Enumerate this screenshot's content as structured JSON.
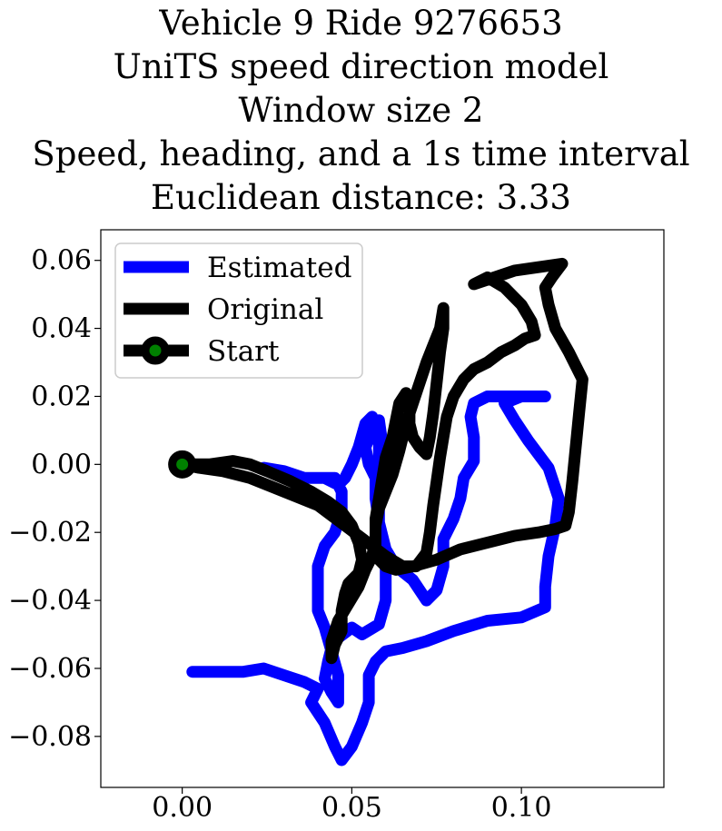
{
  "chart_data": {
    "type": "line",
    "title_lines": [
      "Vehicle 9 Ride 9276653",
      "UniTS speed direction model",
      "Window size 2",
      "Speed, heading, and a 1s time interval",
      "Euclidean distance: 3.33"
    ],
    "xlabel": "",
    "ylabel": "",
    "xlim": [
      -0.024,
      0.142
    ],
    "ylim": [
      -0.095,
      0.069
    ],
    "xticks": [
      0.0,
      0.05,
      0.1
    ],
    "xtick_labels": [
      "0.00",
      "0.05",
      "0.10"
    ],
    "yticks": [
      0.06,
      0.04,
      0.02,
      0.0,
      -0.02,
      -0.04,
      -0.06,
      -0.08
    ],
    "ytick_labels": [
      "0.06",
      "0.04",
      "0.02",
      "0.00",
      "−0.02",
      "−0.04",
      "−0.06",
      "−0.08"
    ],
    "grid": false,
    "legend_position": "top-left",
    "series": [
      {
        "name": "Estimated",
        "color": "#0000ff",
        "points": [
          [
            0.003,
            -0.061
          ],
          [
            0.01,
            -0.061
          ],
          [
            0.018,
            -0.061
          ],
          [
            0.024,
            -0.06
          ],
          [
            0.03,
            -0.062
          ],
          [
            0.036,
            -0.064
          ],
          [
            0.04,
            -0.066
          ],
          [
            0.038,
            -0.07
          ],
          [
            0.042,
            -0.076
          ],
          [
            0.045,
            -0.083
          ],
          [
            0.047,
            -0.087
          ],
          [
            0.05,
            -0.083
          ],
          [
            0.053,
            -0.076
          ],
          [
            0.055,
            -0.07
          ],
          [
            0.055,
            -0.062
          ],
          [
            0.057,
            -0.058
          ],
          [
            0.06,
            -0.055
          ],
          [
            0.065,
            -0.054
          ],
          [
            0.072,
            -0.052
          ],
          [
            0.08,
            -0.049
          ],
          [
            0.09,
            -0.046
          ],
          [
            0.1,
            -0.045
          ],
          [
            0.107,
            -0.042
          ],
          [
            0.107,
            -0.036
          ],
          [
            0.108,
            -0.027
          ],
          [
            0.11,
            -0.018
          ],
          [
            0.111,
            -0.01
          ],
          [
            0.108,
            -0.001
          ],
          [
            0.102,
            0.007
          ],
          [
            0.098,
            0.013
          ],
          [
            0.095,
            0.018
          ],
          [
            0.1,
            0.02
          ],
          [
            0.107,
            0.02
          ],
          [
            0.098,
            0.02
          ],
          [
            0.09,
            0.02
          ],
          [
            0.086,
            0.018
          ],
          [
            0.085,
            0.014
          ],
          [
            0.086,
            0.008
          ],
          [
            0.086,
            0.001
          ],
          [
            0.083,
            -0.004
          ],
          [
            0.082,
            -0.01
          ],
          [
            0.08,
            -0.016
          ],
          [
            0.077,
            -0.022
          ],
          [
            0.077,
            -0.03
          ],
          [
            0.075,
            -0.037
          ],
          [
            0.072,
            -0.04
          ],
          [
            0.068,
            -0.034
          ],
          [
            0.063,
            -0.03
          ],
          [
            0.06,
            -0.025
          ],
          [
            0.058,
            -0.017
          ],
          [
            0.057,
            -0.01
          ],
          [
            0.057,
            -0.004
          ],
          [
            0.055,
            0.0
          ],
          [
            0.054,
            0.005
          ],
          [
            0.056,
            0.01
          ],
          [
            0.058,
            0.013
          ],
          [
            0.059,
            0.006
          ],
          [
            0.06,
            0.0
          ],
          [
            0.058,
            -0.008
          ],
          [
            0.058,
            -0.02
          ],
          [
            0.06,
            -0.03
          ],
          [
            0.06,
            -0.04
          ],
          [
            0.058,
            -0.047
          ],
          [
            0.053,
            -0.05
          ],
          [
            0.05,
            -0.048
          ],
          [
            0.046,
            -0.051
          ],
          [
            0.044,
            -0.054
          ],
          [
            0.043,
            -0.058
          ],
          [
            0.042,
            -0.063
          ],
          [
            0.044,
            -0.067
          ],
          [
            0.046,
            -0.07
          ],
          [
            0.046,
            -0.062
          ],
          [
            0.044,
            -0.055
          ],
          [
            0.042,
            -0.048
          ],
          [
            0.04,
            -0.043
          ],
          [
            0.04,
            -0.036
          ],
          [
            0.04,
            -0.03
          ],
          [
            0.042,
            -0.024
          ],
          [
            0.045,
            -0.02
          ],
          [
            0.047,
            -0.014
          ],
          [
            0.047,
            -0.008
          ],
          [
            0.045,
            -0.004
          ],
          [
            0.042,
            -0.004
          ],
          [
            0.038,
            -0.004
          ],
          [
            0.033,
            -0.004
          ],
          [
            0.028,
            -0.002
          ],
          [
            0.024,
            -0.001
          ],
          [
            0.03,
            -0.002
          ],
          [
            0.036,
            -0.004
          ],
          [
            0.042,
            -0.004
          ],
          [
            0.046,
            -0.006
          ],
          [
            0.048,
            -0.004
          ],
          [
            0.05,
            0.0
          ],
          [
            0.052,
            0.005
          ],
          [
            0.054,
            0.012
          ],
          [
            0.056,
            0.014
          ],
          [
            0.058,
            0.006
          ],
          [
            0.058,
            -0.002
          ],
          [
            0.057,
            -0.008
          ]
        ]
      },
      {
        "name": "Original",
        "color": "#000000",
        "points": [
          [
            0.0,
            0.0
          ],
          [
            0.008,
            0.0
          ],
          [
            0.015,
            0.001
          ],
          [
            0.02,
            0.0
          ],
          [
            0.025,
            -0.002
          ],
          [
            0.032,
            -0.005
          ],
          [
            0.038,
            -0.008
          ],
          [
            0.043,
            -0.011
          ],
          [
            0.047,
            -0.014
          ],
          [
            0.05,
            -0.018
          ],
          [
            0.052,
            -0.023
          ],
          [
            0.053,
            -0.028
          ],
          [
            0.052,
            -0.032
          ],
          [
            0.049,
            -0.035
          ],
          [
            0.048,
            -0.038
          ],
          [
            0.047,
            -0.043
          ],
          [
            0.047,
            -0.049
          ],
          [
            0.045,
            -0.053
          ],
          [
            0.044,
            -0.057
          ],
          [
            0.044,
            -0.052
          ],
          [
            0.046,
            -0.046
          ],
          [
            0.049,
            -0.041
          ],
          [
            0.052,
            -0.036
          ],
          [
            0.054,
            -0.031
          ],
          [
            0.056,
            -0.027
          ],
          [
            0.057,
            -0.022
          ],
          [
            0.057,
            -0.016
          ],
          [
            0.058,
            -0.01
          ],
          [
            0.059,
            -0.004
          ],
          [
            0.06,
            0.002
          ],
          [
            0.062,
            0.008
          ],
          [
            0.063,
            0.013
          ],
          [
            0.064,
            0.018
          ],
          [
            0.066,
            0.021
          ],
          [
            0.067,
            0.018
          ],
          [
            0.067,
            0.012
          ],
          [
            0.068,
            0.008
          ],
          [
            0.07,
            0.005
          ],
          [
            0.072,
            0.003
          ],
          [
            0.073,
            0.008
          ],
          [
            0.074,
            0.015
          ],
          [
            0.075,
            0.024
          ],
          [
            0.076,
            0.033
          ],
          [
            0.077,
            0.04
          ],
          [
            0.077,
            0.046
          ],
          [
            0.076,
            0.04
          ],
          [
            0.074,
            0.035
          ],
          [
            0.072,
            0.03
          ],
          [
            0.07,
            0.024
          ],
          [
            0.068,
            0.018
          ],
          [
            0.066,
            0.012
          ],
          [
            0.064,
            0.004
          ],
          [
            0.062,
            -0.003
          ],
          [
            0.06,
            -0.008
          ],
          [
            0.058,
            -0.013
          ],
          [
            0.057,
            -0.018
          ],
          [
            0.057,
            -0.024
          ],
          [
            0.058,
            -0.028
          ],
          [
            0.06,
            -0.03
          ],
          [
            0.063,
            -0.031
          ],
          [
            0.068,
            -0.03
          ],
          [
            0.075,
            -0.028
          ],
          [
            0.082,
            -0.025
          ],
          [
            0.09,
            -0.023
          ],
          [
            0.098,
            -0.021
          ],
          [
            0.105,
            -0.02
          ],
          [
            0.11,
            -0.019
          ],
          [
            0.113,
            -0.018
          ],
          [
            0.114,
            -0.014
          ],
          [
            0.115,
            -0.005
          ],
          [
            0.116,
            0.005
          ],
          [
            0.117,
            0.015
          ],
          [
            0.118,
            0.025
          ],
          [
            0.114,
            0.033
          ],
          [
            0.11,
            0.04
          ],
          [
            0.108,
            0.047
          ],
          [
            0.107,
            0.052
          ],
          [
            0.109,
            0.055
          ],
          [
            0.112,
            0.059
          ],
          [
            0.105,
            0.058
          ],
          [
            0.098,
            0.057
          ],
          [
            0.092,
            0.055
          ],
          [
            0.086,
            0.053
          ],
          [
            0.09,
            0.055
          ],
          [
            0.095,
            0.052
          ],
          [
            0.1,
            0.047
          ],
          [
            0.103,
            0.042
          ],
          [
            0.104,
            0.038
          ],
          [
            0.101,
            0.037
          ],
          [
            0.098,
            0.035
          ],
          [
            0.094,
            0.033
          ],
          [
            0.09,
            0.03
          ],
          [
            0.086,
            0.028
          ],
          [
            0.083,
            0.025
          ],
          [
            0.08,
            0.02
          ],
          [
            0.078,
            0.014
          ],
          [
            0.077,
            0.008
          ],
          [
            0.076,
            0.002
          ],
          [
            0.075,
            -0.005
          ],
          [
            0.074,
            -0.012
          ],
          [
            0.073,
            -0.02
          ],
          [
            0.072,
            -0.026
          ],
          [
            0.069,
            -0.03
          ],
          [
            0.065,
            -0.03
          ],
          [
            0.06,
            -0.027
          ],
          [
            0.056,
            -0.024
          ],
          [
            0.052,
            -0.021
          ],
          [
            0.048,
            -0.018
          ],
          [
            0.044,
            -0.015
          ],
          [
            0.04,
            -0.012
          ],
          [
            0.035,
            -0.01
          ],
          [
            0.03,
            -0.008
          ],
          [
            0.025,
            -0.006
          ],
          [
            0.02,
            -0.004
          ],
          [
            0.012,
            -0.002
          ],
          [
            0.005,
            -0.001
          ],
          [
            0.0,
            0.0
          ]
        ]
      },
      {
        "name": "Start",
        "marker_fill": "#008000",
        "marker_edge": "#000000",
        "points": [
          [
            0.0,
            0.0
          ]
        ]
      }
    ],
    "legend": [
      {
        "label": "Estimated",
        "color": "#0000ff",
        "kind": "line"
      },
      {
        "label": "Original",
        "color": "#000000",
        "kind": "line"
      },
      {
        "label": "Start",
        "color": "#000000",
        "kind": "marker"
      }
    ]
  }
}
